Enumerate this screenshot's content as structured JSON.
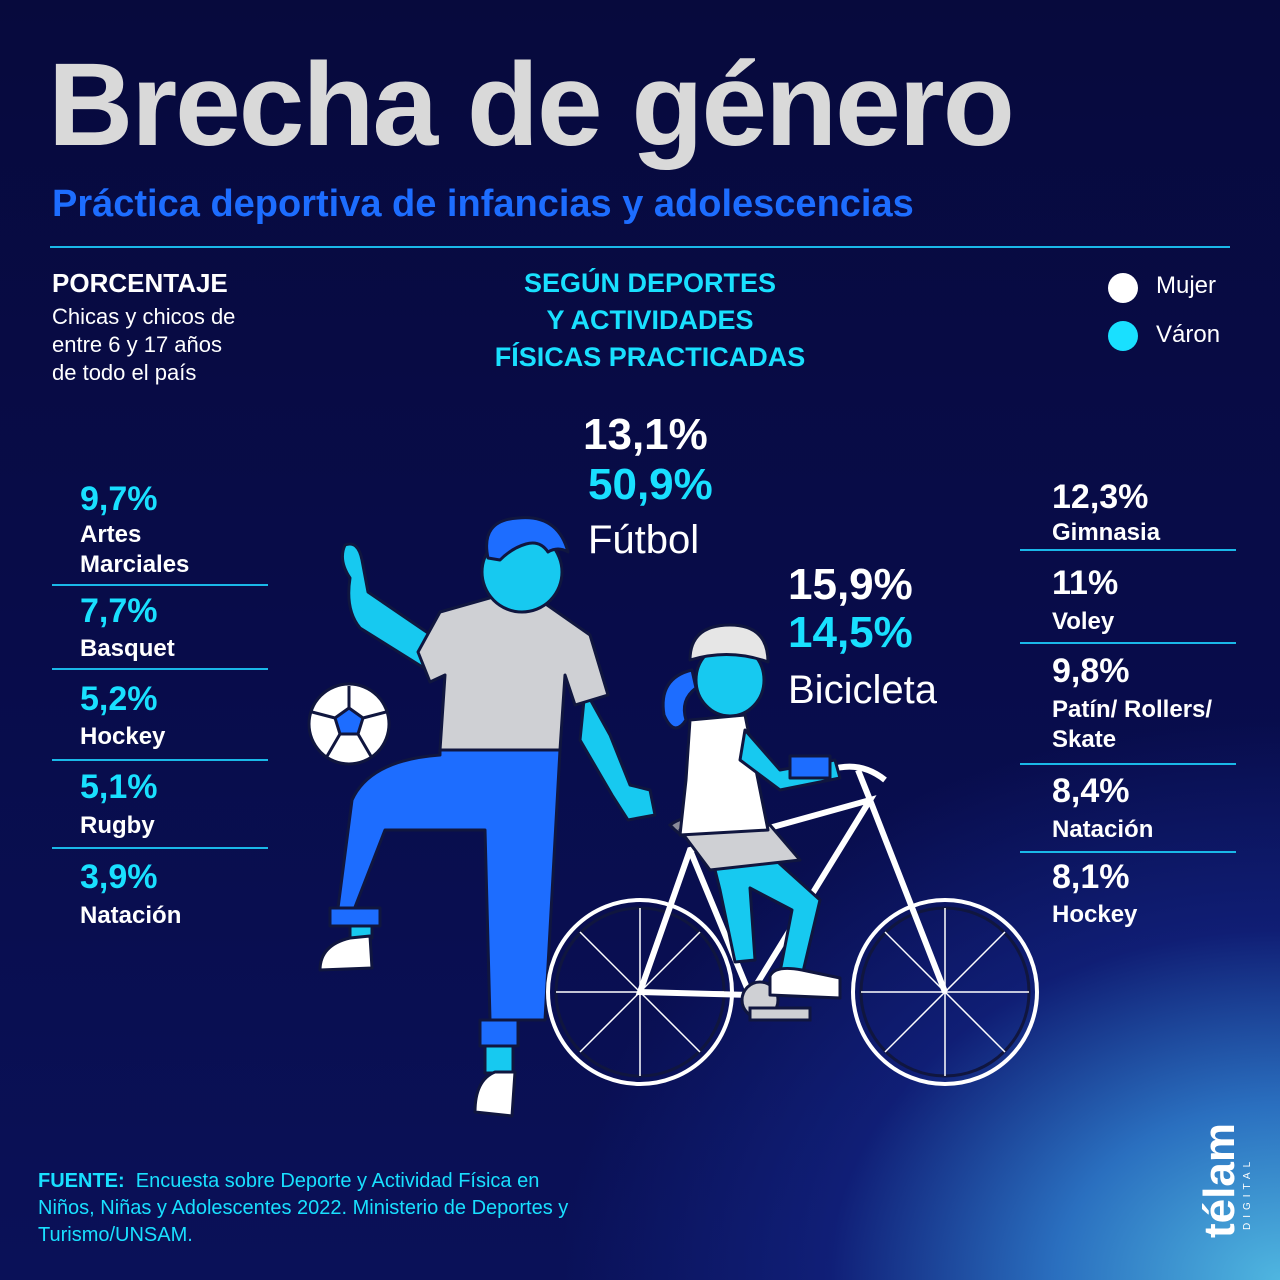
{
  "title": "Brecha de género",
  "subtitle": "Práctica deportiva de infancias y adolescencias",
  "left_header": {
    "label": "PORCENTAJE",
    "description": [
      "Chicas y chicos de",
      "entre 6 y 17 años",
      "de todo el país"
    ]
  },
  "center_header": [
    "SEGÚN DEPORTES",
    "Y ACTIVIDADES",
    "FÍSICAS PRACTICADAS"
  ],
  "legend": [
    {
      "label": "Mujer",
      "color": "#ffffff"
    },
    {
      "label": "Váron",
      "color": "#19e0ff"
    }
  ],
  "source": {
    "label": "FUENTE:",
    "text": "Encuesta sobre Deporte y Actividad Física en Niños, Niñas y Adolescentes 2022. Ministerio de Deportes y Turismo/UNSAM."
  },
  "logo": {
    "brand": "télam",
    "sub": "DIGITAL"
  },
  "colors": {
    "mujer": "#ffffff",
    "varon": "#19e0ff",
    "accent": "#1d6dff",
    "rule": "#1ab8e8",
    "title": "#d9d9d9"
  },
  "chart_data": {
    "type": "table",
    "title": "Brecha de género",
    "subtitle": "Práctica deportiva de infancias y adolescencias",
    "highlights": [
      {
        "sport": "Fútbol",
        "mujer": "13,1%",
        "varon": "50,9%"
      },
      {
        "sport": "Bicicleta",
        "mujer": "15,9%",
        "varon": "14,5%"
      }
    ],
    "varon_list": [
      {
        "sport": "Artes Marciales",
        "value": "9,7%",
        "lines": [
          "Artes",
          "Marciales"
        ]
      },
      {
        "sport": "Basquet",
        "value": "7,7%",
        "lines": [
          "Basquet"
        ]
      },
      {
        "sport": "Hockey",
        "value": "5,2%",
        "lines": [
          "Hockey"
        ]
      },
      {
        "sport": "Rugby",
        "value": "5,1%",
        "lines": [
          "Rugby"
        ]
      },
      {
        "sport": "Natación",
        "value": "3,9%",
        "lines": [
          "Natación"
        ]
      }
    ],
    "mujer_list": [
      {
        "sport": "Gimnasia",
        "value": "12,3%",
        "lines": [
          "Gimnasia"
        ]
      },
      {
        "sport": "Voley",
        "value": "11%",
        "lines": [
          "Voley"
        ]
      },
      {
        "sport": "Patín/ Rollers/ Skate",
        "value": "9,8%",
        "lines": [
          "Patín/ Rollers/",
          "Skate"
        ]
      },
      {
        "sport": "Natación",
        "value": "8,4%",
        "lines": [
          "Natación"
        ]
      },
      {
        "sport": "Hockey",
        "value": "8,1%",
        "lines": [
          "Hockey"
        ]
      }
    ]
  }
}
